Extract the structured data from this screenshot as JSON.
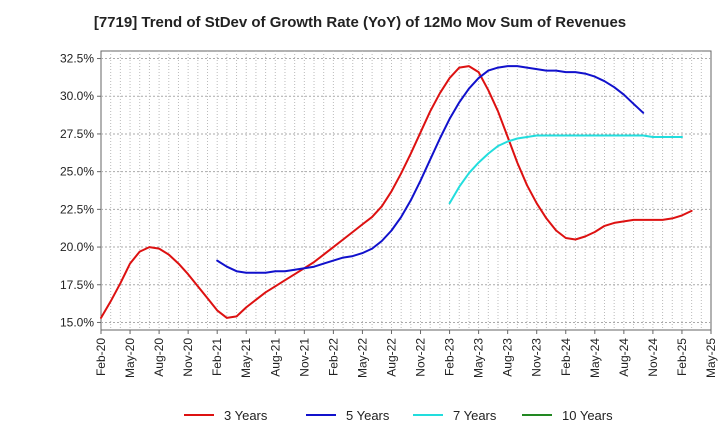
{
  "chart_data": {
    "type": "line",
    "title": "[7719]  Trend of StDev of Growth Rate (YoY) of 12Mo Mov Sum of Revenues",
    "xlabel": "",
    "ylabel": "",
    "ylim": [
      14.5,
      33.0
    ],
    "yticks": [
      15.0,
      17.5,
      20.0,
      22.5,
      25.0,
      27.5,
      30.0,
      32.5
    ],
    "ytick_labels": [
      "15.0%",
      "17.5%",
      "20.0%",
      "22.5%",
      "25.0%",
      "27.5%",
      "30.0%",
      "32.5%"
    ],
    "x_start": "Feb-20",
    "x_range_months": [
      0,
      63
    ],
    "xticks": [
      "Feb-20",
      "May-20",
      "Aug-20",
      "Nov-20",
      "Feb-21",
      "May-21",
      "Aug-21",
      "Nov-21",
      "Feb-22",
      "May-22",
      "Aug-22",
      "Nov-22",
      "Feb-23",
      "May-23",
      "Aug-23",
      "Nov-23",
      "Feb-24",
      "May-24",
      "Aug-24",
      "Nov-24",
      "Feb-25",
      "May-25"
    ],
    "grid": true,
    "legend_position": "bottom",
    "series": [
      {
        "name": "3 Years",
        "color": "#dd1111",
        "start_month": 0,
        "values": [
          15.3,
          16.4,
          17.6,
          18.9,
          19.7,
          20.0,
          19.9,
          19.5,
          18.9,
          18.2,
          17.4,
          16.6,
          15.8,
          15.3,
          15.4,
          16.0,
          16.5,
          17.0,
          17.4,
          17.8,
          18.2,
          18.6,
          19.0,
          19.5,
          20.0,
          20.5,
          21.0,
          21.5,
          22.0,
          22.7,
          23.7,
          24.9,
          26.2,
          27.6,
          29.0,
          30.2,
          31.2,
          31.9,
          32.0,
          31.6,
          30.4,
          29.0,
          27.3,
          25.6,
          24.1,
          22.9,
          21.9,
          21.1,
          20.6,
          20.5,
          20.7,
          21.0,
          21.4,
          21.6,
          21.7,
          21.8,
          21.8,
          21.8,
          21.8,
          21.9,
          22.1,
          22.4
        ]
      },
      {
        "name": "5 Years",
        "color": "#1111cc",
        "start_month": 12,
        "values": [
          19.1,
          18.7,
          18.4,
          18.3,
          18.3,
          18.3,
          18.4,
          18.4,
          18.5,
          18.6,
          18.7,
          18.9,
          19.1,
          19.3,
          19.4,
          19.6,
          19.9,
          20.4,
          21.1,
          22.0,
          23.1,
          24.4,
          25.8,
          27.2,
          28.5,
          29.6,
          30.5,
          31.2,
          31.7,
          31.9,
          32.0,
          32.0,
          31.9,
          31.8,
          31.7,
          31.7,
          31.6,
          31.6,
          31.5,
          31.3,
          31.0,
          30.6,
          30.1,
          29.5,
          28.9
        ]
      },
      {
        "name": "7 Years",
        "color": "#22dddd",
        "start_month": 36,
        "values": [
          22.9,
          24.0,
          24.9,
          25.6,
          26.2,
          26.7,
          27.0,
          27.2,
          27.3,
          27.4,
          27.4,
          27.4,
          27.4,
          27.4,
          27.4,
          27.4,
          27.4,
          27.4,
          27.4,
          27.4,
          27.4,
          27.3,
          27.3,
          27.3,
          27.3
        ]
      },
      {
        "name": "10 Years",
        "color": "#228822",
        "start_month": 0,
        "values": []
      }
    ]
  }
}
